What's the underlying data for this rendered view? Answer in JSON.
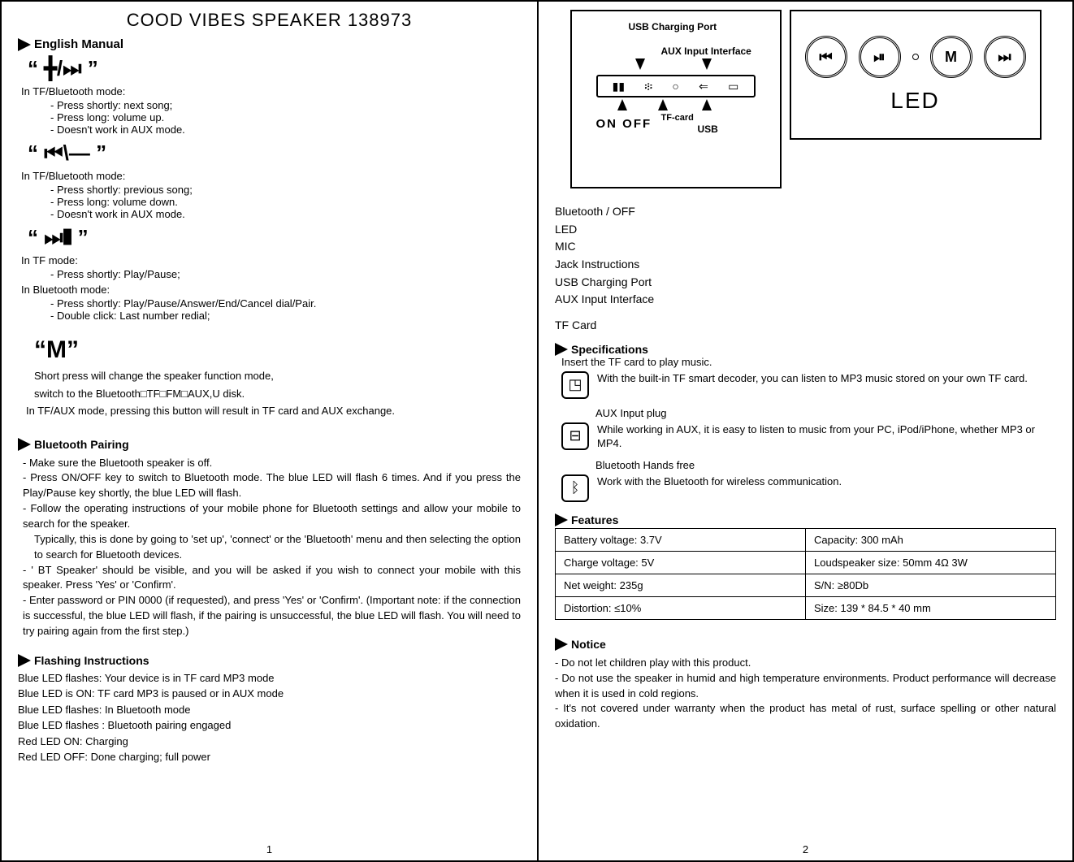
{
  "title": "COOD VIBES SPEAKER 138973",
  "manual_heading": "English Manual",
  "sections": {
    "plus": {
      "symbol": "“ ╋/⏭ ”",
      "mode": "In TF/Bluetooth mode:",
      "items": [
        "Press shortly: next song;",
        "Press long: volume up.",
        "Doesn't work in AUX mode."
      ]
    },
    "minus": {
      "symbol": "“ ⏮\\— ”",
      "mode": "In TF/Bluetooth mode:",
      "items": [
        "Press shortly: previous song;",
        "Press long: volume down.",
        "Doesn't work in AUX mode."
      ]
    },
    "play": {
      "symbol": "“    ⏭❚    ”",
      "mode1": "In TF mode:",
      "items1": [
        "Press shortly: Play/Pause;"
      ],
      "mode2": "In Bluetooth mode:",
      "items2": [
        "Press shortly: Play/Pause/Answer/End/Cancel dial/Pair.",
        "Double click: Last number redial;"
      ]
    },
    "m": {
      "symbol": "“M”",
      "line1": "Short press will change the speaker function mode,",
      "line2": "switch to the Bluetooth□TF□FM□AUX,U disk.",
      "line3": "In TF/AUX mode, pressing this button will result in TF card and AUX exchange."
    }
  },
  "pairing": {
    "heading": "Bluetooth Pairing",
    "items": [
      "Make sure the Bluetooth speaker is off.",
      "Press ON/OFF key to switch to Bluetooth mode. The blue LED will flash 6 times. And if you press the Play/Pause key shortly, the blue LED will flash.",
      "Follow the operating instructions of your mobile phone for Bluetooth settings and allow your mobile to search for the speaker.",
      "Typically, this is done by going to 'set up', 'connect' or the 'Bluetooth' menu and then selecting the option to search for Bluetooth devices.",
      "' BT Speaker' should be visible, and you will be asked if you wish to connect your mobile with this speaker. Press 'Yes' or 'Confirm'.",
      "Enter password or PIN 0000 (if requested), and press 'Yes' or 'Confirm'. (Important note: if the connection is successful, the blue LED will flash, if the pairing is unsuccessful, the blue LED will flash. You will need to try pairing again from the first step.)"
    ],
    "sub_indices": [
      3
    ]
  },
  "flashing": {
    "heading": "Flashing Instructions",
    "lines": [
      "Blue   LED flashes: Your device is in TF card MP3 mode",
      "Blue   LED is ON: TF card MP3 is paused or in AUX mode",
      "Blue LED flashes: In Bluetooth mode",
      "Blue LED flashes : Bluetooth pairing engaged",
      "Red LED ON: Charging",
      "Red LED OFF: Done charging; full power"
    ]
  },
  "page1_num": "1",
  "page2_num": "2",
  "diagramA": {
    "usb_label": "USB Charging Port",
    "aux_label": "AUX Input Interface",
    "onoff": "ON  OFF",
    "tfcard": "TF-card",
    "usb": "USB",
    "port_glyphs": [
      "▮▮",
      "፨",
      "○",
      "⇐",
      "▭"
    ]
  },
  "diagramB": {
    "buttons": [
      "⏮",
      "⏯",
      "M",
      "⏭"
    ],
    "led": "LED"
  },
  "right_list": [
    "Bluetooth / OFF",
    "LED",
    "MIC",
    "Jack Instructions",
    "USB Charging Port",
    "AUX Input Interface",
    "TF Card"
  ],
  "specs": {
    "heading": "Specifications",
    "tf": {
      "pre": "Insert the TF card to play music.",
      "text": "With the built-in TF smart decoder, you can listen to MP3 music stored on your own TF card."
    },
    "aux": {
      "pre": "AUX Input plug",
      "text": "While working in AUX, it is easy to listen to music from your PC, iPod/iPhone, whether MP3 or MP4."
    },
    "bt": {
      "pre": "Bluetooth Hands free",
      "text": "Work with the Bluetooth for wireless communication."
    }
  },
  "features": {
    "heading": "Features",
    "rows": [
      [
        "Battery voltage: 3.7V",
        "Capacity:  300  mAh"
      ],
      [
        "Charge voltage: 5V",
        "Loudspeaker size: 50mm 4Ω 3W"
      ],
      [
        "Net weight:  235g",
        "S/N: ≥80Db"
      ],
      [
        "Distortion: ≤10%",
        "Size: 139 * 84.5 * 40 mm"
      ]
    ]
  },
  "notice": {
    "heading": "Notice",
    "items": [
      "Do not let children play with this product.",
      "Do not use the speaker in humid and high temperature environments. Product performance will decrease when it is used in cold regions.",
      "It's not covered under warranty when the product has metal of rust, surface spelling or other natural oxidation."
    ]
  }
}
